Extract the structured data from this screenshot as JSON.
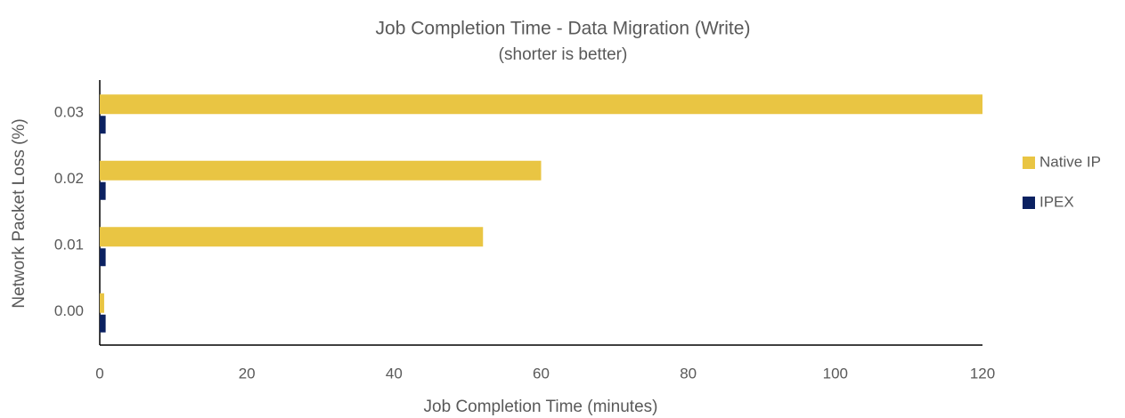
{
  "chart_data": {
    "type": "hbar",
    "title": "Job Completion Time - Data Migration (Write)",
    "subtitle": "(shorter is better)",
    "x_label": "Job Completion Time (minutes)",
    "y_label": "Network Packet Loss (%)",
    "categories": [
      "0.00",
      "0.01",
      "0.02",
      "0.03"
    ],
    "series": [
      {
        "name": "Native IP",
        "color": "#e9c543",
        "values": [
          0.6,
          52.1,
          60.0,
          120.0
        ]
      },
      {
        "name": "IPEX",
        "color": "#0b2161",
        "values": [
          0.8,
          0.8,
          0.8,
          0.8
        ]
      }
    ],
    "xlim": [
      0,
      120
    ],
    "xticks": [
      0,
      20,
      40,
      60,
      80,
      100,
      120
    ],
    "grid": false,
    "legend": "right"
  }
}
